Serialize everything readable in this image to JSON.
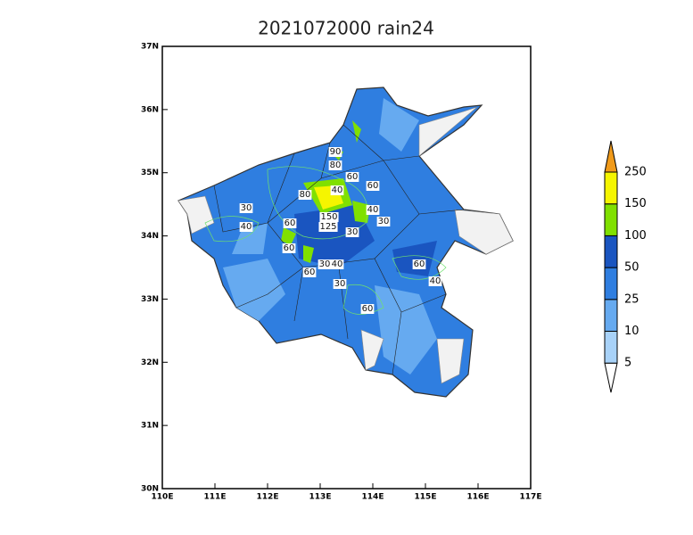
{
  "title": "2021072000 rain24",
  "x_axis": {
    "lim": [
      110,
      117
    ],
    "ticks": [
      {
        "value": 110,
        "label": "110E"
      },
      {
        "value": 111,
        "label": "111E"
      },
      {
        "value": 112,
        "label": "112E"
      },
      {
        "value": 113,
        "label": "113E"
      },
      {
        "value": 114,
        "label": "114E"
      },
      {
        "value": 115,
        "label": "115E"
      },
      {
        "value": 116,
        "label": "116E"
      },
      {
        "value": 117,
        "label": "117E"
      }
    ]
  },
  "y_axis": {
    "lim": [
      30,
      37
    ],
    "ticks": [
      {
        "value": 30,
        "label": "30N"
      },
      {
        "value": 31,
        "label": "31N"
      },
      {
        "value": 32,
        "label": "32N"
      },
      {
        "value": 33,
        "label": "33N"
      },
      {
        "value": 34,
        "label": "34N"
      },
      {
        "value": 35,
        "label": "35N"
      },
      {
        "value": 36,
        "label": "36N"
      },
      {
        "value": 37,
        "label": "37N"
      }
    ]
  },
  "colorbar": {
    "levels": [
      5,
      10,
      25,
      50,
      100,
      150,
      250
    ],
    "colors": [
      "#ffffff",
      "#a8d2f8",
      "#66aaf0",
      "#2f7ee0",
      "#1a55c0",
      "#80e000",
      "#f5f500",
      "#f09a1a"
    ]
  },
  "contour_labels": [
    "90",
    "80",
    "60",
    "60",
    "80",
    "40",
    "30",
    "40",
    "60",
    "150",
    "125",
    "30",
    "40",
    "30",
    "60",
    "40",
    "30",
    "60",
    "60",
    "40",
    "30",
    "60"
  ]
}
